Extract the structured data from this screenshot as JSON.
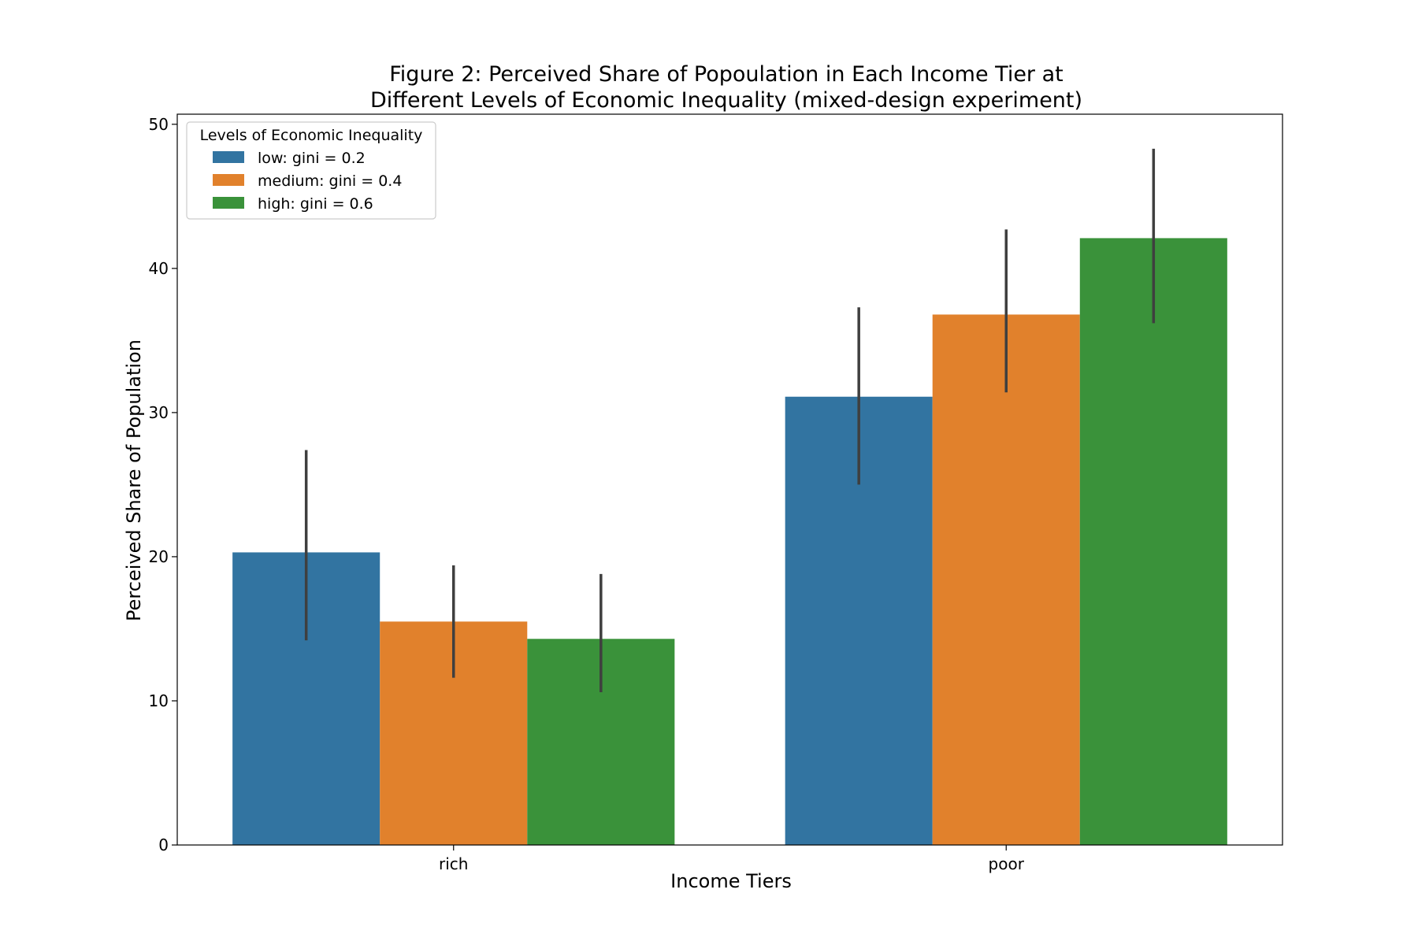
{
  "chart_data": {
    "type": "bar",
    "title_lines": [
      "Figure 2: Perceived Share of Popoulation in Each Income Tier at",
      "Different Levels of Economic Inequality (mixed-design experiment)"
    ],
    "xlabel": "Income Tiers",
    "ylabel": "Perceived Share of Population",
    "categories": [
      "rich",
      "poor"
    ],
    "ylim": [
      0,
      50.7
    ],
    "yticks": [
      0,
      10,
      20,
      30,
      40,
      50
    ],
    "grid": false,
    "legend": {
      "title": "Levels of Economic Inequality",
      "position": "top-left"
    },
    "series": [
      {
        "name": "low: gini = 0.2",
        "color": "#3274a1",
        "values": [
          20.3,
          31.1
        ],
        "error_low": [
          14.2,
          25.0
        ],
        "error_high": [
          27.4,
          37.3
        ]
      },
      {
        "name": "medium: gini = 0.4",
        "color": "#e1812c",
        "values": [
          15.5,
          36.8
        ],
        "error_low": [
          11.6,
          31.4
        ],
        "error_high": [
          19.4,
          42.7
        ]
      },
      {
        "name": "high: gini = 0.6",
        "color": "#3a923a",
        "values": [
          14.3,
          42.1
        ],
        "error_low": [
          10.6,
          36.2
        ],
        "error_high": [
          18.8,
          48.3
        ]
      }
    ],
    "errorbar_color": "#3f3f3f"
  }
}
